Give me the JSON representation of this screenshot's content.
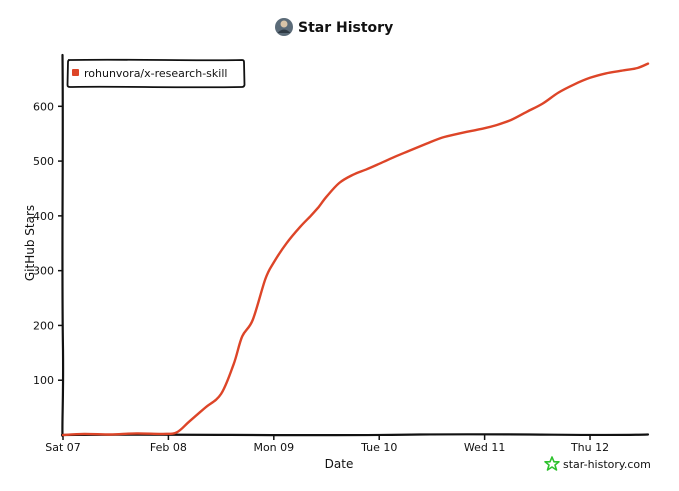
{
  "header": {
    "title": "Star History",
    "avatar_icon": "avatar-icon"
  },
  "legend": {
    "label": "rohunvora/x-research-skill",
    "color": "#dd4528"
  },
  "watermark": {
    "text": "star-history.com",
    "icon": "star-logo-icon",
    "color": "#2fc22f"
  },
  "chart_data": {
    "type": "line",
    "title": "Star History",
    "xlabel": "Date",
    "ylabel": "GitHub Stars",
    "x_unit": "days since Sat 07 00:00",
    "xlim": [
      0,
      5.55
    ],
    "ylim": [
      0,
      690
    ],
    "yticks": [
      100,
      200,
      300,
      400,
      500,
      600
    ],
    "xticks": [
      {
        "pos": 0,
        "label": "Sat 07"
      },
      {
        "pos": 1,
        "label": "Feb 08"
      },
      {
        "pos": 2,
        "label": "Mon 09"
      },
      {
        "pos": 3,
        "label": "Tue 10"
      },
      {
        "pos": 4,
        "label": "Wed 11"
      },
      {
        "pos": 5,
        "label": "Thu 12"
      }
    ],
    "legend_position": "top-left",
    "grid": false,
    "series": [
      {
        "name": "rohunvora/x-research-skill",
        "color": "#dd4528",
        "x": [
          0.0,
          0.2,
          0.45,
          0.7,
          0.95,
          1.08,
          1.2,
          1.35,
          1.5,
          1.62,
          1.7,
          1.8,
          1.92,
          2.0,
          2.12,
          2.25,
          2.35,
          2.42,
          2.5,
          2.62,
          2.75,
          2.88,
          3.0,
          3.15,
          3.3,
          3.45,
          3.6,
          3.75,
          3.9,
          4.0,
          4.1,
          4.25,
          4.4,
          4.55,
          4.7,
          4.85,
          5.0,
          5.15,
          5.3,
          5.45,
          5.55
        ],
        "y": [
          0,
          2,
          1,
          3,
          2,
          5,
          25,
          50,
          75,
          130,
          180,
          210,
          285,
          315,
          350,
          380,
          400,
          415,
          435,
          460,
          475,
          485,
          495,
          508,
          520,
          532,
          543,
          550,
          556,
          560,
          565,
          575,
          590,
          605,
          625,
          640,
          652,
          660,
          665,
          670,
          678
        ]
      }
    ]
  }
}
